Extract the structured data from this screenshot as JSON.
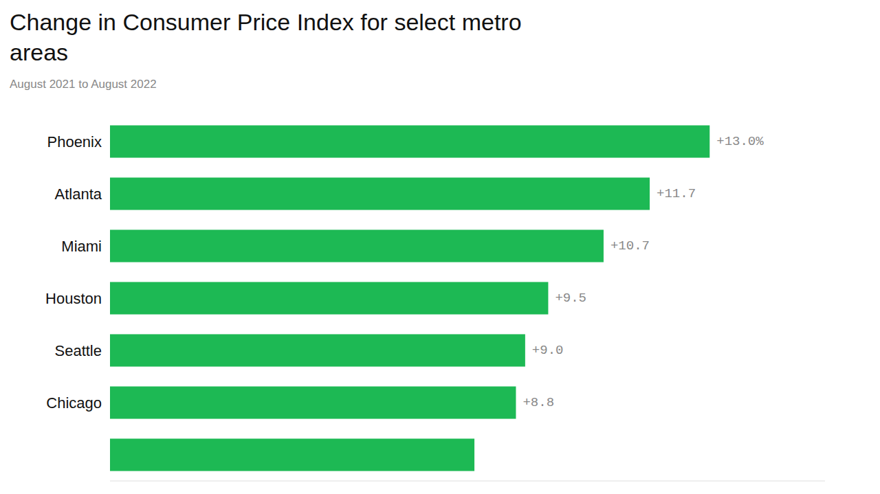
{
  "chart_data": {
    "type": "bar",
    "orientation": "horizontal",
    "title": "Change in Consumer Price Index for select metro\nareas",
    "subtitle": "August 2021 to August 2022",
    "categories": [
      "Phoenix",
      "Atlanta",
      "Miami",
      "Houston",
      "Seattle",
      "Chicago",
      null
    ],
    "values": [
      13.0,
      11.7,
      10.7,
      9.5,
      9.0,
      8.8,
      7.9
    ],
    "value_labels": [
      "+13.0%",
      "+11.7",
      "+10.7",
      "+9.5",
      "+9.0",
      "+8.8",
      null
    ],
    "color": "#1DB954",
    "xlim": [
      0,
      15.5
    ],
    "grid": false,
    "data_labels": true,
    "tick_labels": "y"
  }
}
